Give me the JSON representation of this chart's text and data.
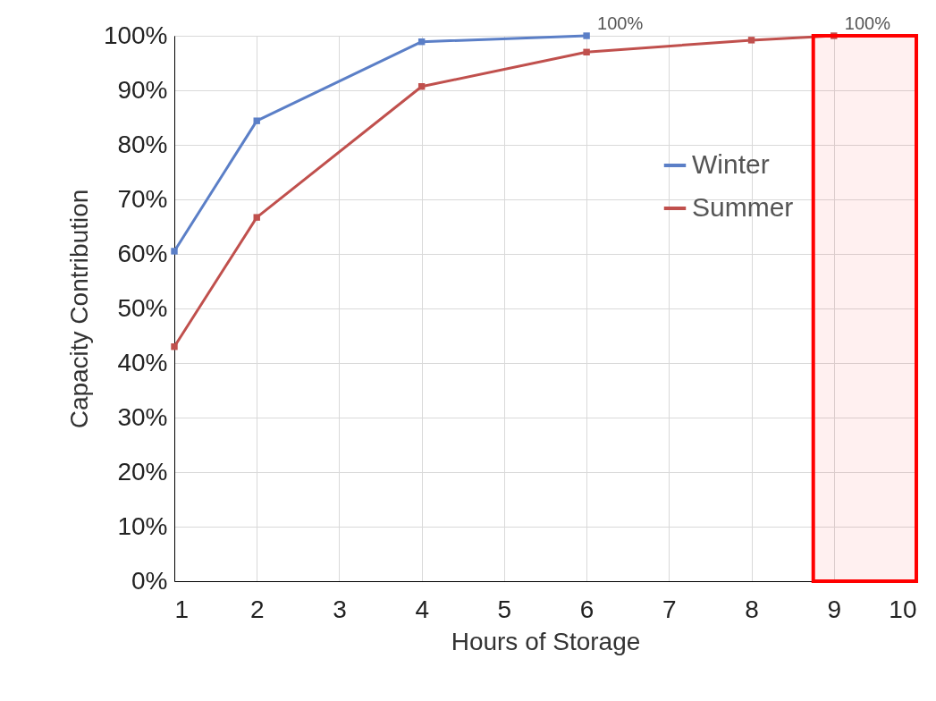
{
  "chart_data": {
    "type": "line",
    "xlabel": "Hours of Storage",
    "ylabel": "Capacity Contribution",
    "xlim": [
      1,
      10
    ],
    "xticks": [
      1,
      2,
      3,
      4,
      5,
      6,
      7,
      8,
      9,
      10
    ],
    "ylim": [
      0,
      100
    ],
    "yticks": [
      {
        "value": 0,
        "label": "0%"
      },
      {
        "value": 10,
        "label": "10%"
      },
      {
        "value": 20,
        "label": "20%"
      },
      {
        "value": 30,
        "label": "30%"
      },
      {
        "value": 40,
        "label": "40%"
      },
      {
        "value": 50,
        "label": "50%"
      },
      {
        "value": 60,
        "label": "60%"
      },
      {
        "value": 70,
        "label": "70%"
      },
      {
        "value": 80,
        "label": "80%"
      },
      {
        "value": 90,
        "label": "90%"
      },
      {
        "value": 100,
        "label": "100%"
      }
    ],
    "bands": [
      {
        "axis": "x",
        "from": 8.75,
        "to": 10,
        "color": "#ff0000"
      }
    ],
    "grid": true,
    "legend": "right",
    "marker": "square",
    "series": [
      {
        "name": "Winter",
        "color": "#5b7fc7",
        "x": [
          1,
          2,
          4,
          6
        ],
        "values": [
          60.5,
          84.4,
          98.9,
          100
        ],
        "value_labels": [
          null,
          null,
          null,
          "100%"
        ]
      },
      {
        "name": "Summer",
        "color": "#c0504d",
        "x": [
          1,
          2,
          4,
          6,
          8,
          9
        ],
        "values": [
          43,
          66.7,
          90.7,
          97,
          99.2,
          100
        ],
        "value_labels": [
          null,
          null,
          null,
          null,
          null,
          "100%"
        ]
      }
    ]
  }
}
